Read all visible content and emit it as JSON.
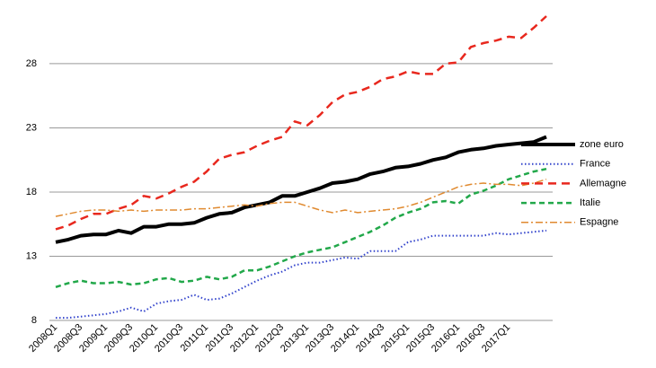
{
  "chart_data": {
    "type": "line",
    "categories": [
      "2008Q1",
      null,
      "2008Q3",
      null,
      "2009Q1",
      null,
      "2009Q3",
      null,
      "2010Q1",
      null,
      "2010Q3",
      null,
      "2011Q1",
      null,
      "2011Q3",
      null,
      "2012Q1",
      null,
      "2012Q3",
      null,
      "2013Q1",
      null,
      "2013Q3",
      null,
      "2014Q1",
      null,
      "2014Q3",
      null,
      "2015Q1",
      null,
      "2015Q3",
      null,
      "2016Q1",
      null,
      "2016Q3",
      null,
      "2017Q1",
      null,
      null,
      null
    ],
    "series": [
      {
        "name": "zone euro",
        "color": "#000000",
        "width": 4,
        "dash": "none",
        "values": [
          14.1,
          14.3,
          14.6,
          14.7,
          14.7,
          15.0,
          14.8,
          15.3,
          15.3,
          15.5,
          15.5,
          15.6,
          16.0,
          16.3,
          16.4,
          16.8,
          17.0,
          17.2,
          17.7,
          17.7,
          18.0,
          18.3,
          18.7,
          18.8,
          19.0,
          19.4,
          19.6,
          19.9,
          20.0,
          20.2,
          20.5,
          20.7,
          21.1,
          21.3,
          21.4,
          21.6,
          21.7,
          21.8,
          21.9,
          22.3
        ]
      },
      {
        "name": "France",
        "color": "#3344cc",
        "width": 2,
        "dash": "1.5 2.5",
        "values": [
          8.2,
          8.2,
          8.3,
          8.4,
          8.5,
          8.7,
          9.0,
          8.7,
          9.3,
          9.5,
          9.6,
          10.0,
          9.6,
          9.7,
          10.1,
          10.6,
          11.1,
          11.5,
          11.8,
          12.3,
          12.5,
          12.5,
          12.7,
          12.9,
          12.8,
          13.4,
          13.4,
          13.4,
          14.1,
          14.3,
          14.6,
          14.6,
          14.6,
          14.6,
          14.6,
          14.8,
          14.7,
          14.8,
          14.9,
          15.0
        ]
      },
      {
        "name": "Allemagne",
        "color": "#e8281e",
        "width": 2.5,
        "dash": "9 6",
        "values": [
          15.1,
          15.4,
          15.9,
          16.3,
          16.3,
          16.7,
          17.0,
          17.7,
          17.5,
          17.9,
          18.4,
          18.8,
          19.6,
          20.6,
          20.9,
          21.1,
          21.6,
          22.0,
          22.3,
          23.5,
          23.2,
          24.0,
          25.0,
          25.6,
          25.8,
          26.2,
          26.8,
          27.0,
          27.4,
          27.2,
          27.2,
          28.0,
          28.1,
          29.3,
          29.6,
          29.8,
          30.1,
          30.0,
          30.8,
          31.7
        ]
      },
      {
        "name": "Italie",
        "color": "#22a84a",
        "width": 2.5,
        "dash": "6 4",
        "values": [
          10.6,
          10.9,
          11.1,
          10.9,
          10.9,
          11.0,
          10.8,
          10.9,
          11.2,
          11.3,
          11.0,
          11.1,
          11.4,
          11.2,
          11.4,
          11.9,
          11.9,
          12.2,
          12.6,
          13.0,
          13.3,
          13.5,
          13.7,
          14.1,
          14.5,
          14.9,
          15.4,
          16.0,
          16.4,
          16.7,
          17.2,
          17.3,
          17.1,
          17.8,
          18.1,
          18.5,
          19.0,
          19.3,
          19.6,
          19.8
        ]
      },
      {
        "name": "Espagne",
        "color": "#e08a30",
        "width": 1.5,
        "dash": "8 3 2 3",
        "values": [
          16.1,
          16.3,
          16.5,
          16.6,
          16.6,
          16.5,
          16.6,
          16.5,
          16.6,
          16.6,
          16.6,
          16.7,
          16.7,
          16.8,
          16.9,
          17.0,
          16.9,
          17.1,
          17.2,
          17.2,
          16.9,
          16.6,
          16.4,
          16.6,
          16.4,
          16.5,
          16.6,
          16.7,
          16.9,
          17.2,
          17.6,
          18.0,
          18.4,
          18.6,
          18.7,
          18.6,
          18.6,
          18.5,
          18.7,
          19.0
        ]
      }
    ],
    "ylim": [
      8,
      32.4
    ],
    "yticks": [
      8,
      13,
      18,
      23,
      28
    ],
    "grid": true,
    "legend": "right"
  }
}
